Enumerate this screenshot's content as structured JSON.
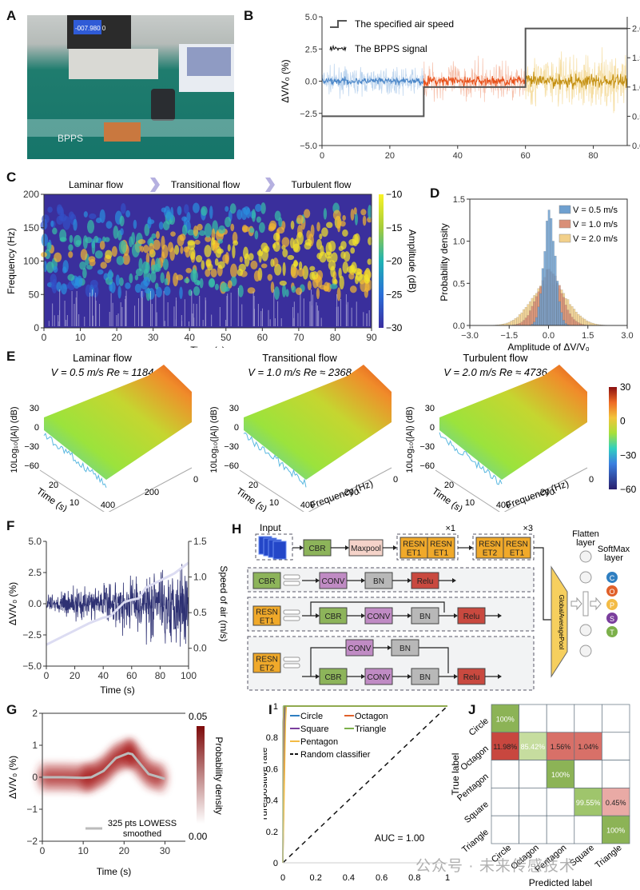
{
  "panels": {
    "A": {
      "letter": "A",
      "photo_label": "BPPS",
      "meter_readout": "-007.980 0",
      "description": "Photo of experimental setup: BPPS sensor on a transparent tube, power supply, handheld anemometer, laptop"
    },
    "H": {
      "letter": "H",
      "input_label": "Input",
      "repeat_1": "×1",
      "repeat_3": "×3",
      "main_blocks": [
        "CBR",
        "Maxpool"
      ],
      "group1": [
        [
          "RESN",
          "ET1"
        ],
        [
          "RESN",
          "ET1"
        ]
      ],
      "group2": [
        [
          "RESN",
          "ET2"
        ],
        [
          "RESN",
          "ET1"
        ]
      ],
      "cbr_row": [
        "CBR",
        "CONV",
        "BN",
        "Relu"
      ],
      "resnet1_row": {
        "name": [
          "RESN",
          "ET1"
        ],
        "blocks": [
          "CBR",
          "CONV",
          "BN",
          "Relu"
        ]
      },
      "resnet2_row": {
        "name": [
          "RESN",
          "ET2"
        ],
        "top_blocks": [
          "CONV",
          "BN"
        ],
        "blocks": [
          "CBR",
          "CONV",
          "BN",
          "Relu"
        ]
      },
      "gap_label": "GlobalAveragePool",
      "flatten_label": [
        "Flatten",
        "layer"
      ],
      "softmax_label": [
        "SoftMax",
        "layer"
      ],
      "softmax_nodes": [
        {
          "letter": "C",
          "color": "#2f7fc1"
        },
        {
          "letter": "O",
          "color": "#e0602a"
        },
        {
          "letter": "P",
          "color": "#f3bb45"
        },
        {
          "letter": "S",
          "color": "#7a3e9d"
        },
        {
          "letter": "T",
          "color": "#7cb04a"
        }
      ]
    }
  },
  "watermark": "公众号 · 未来传感技术",
  "chart_data": [
    {
      "id": "B",
      "letter": "B",
      "type": "line",
      "xlabel": "Time (s)",
      "ylabel": "ΔV/V₀ (%)",
      "y2label": "Speed of air (m/s)",
      "xlim": [
        0,
        90
      ],
      "ylim": [
        -5,
        5
      ],
      "y2lim": [
        0,
        2.2
      ],
      "xticks": [
        "0",
        "20",
        "40",
        "60",
        "80"
      ],
      "yticks": [
        "−5.0",
        "−2.5",
        "0.0",
        "2.5",
        "5.0"
      ],
      "y2ticks": [
        "0.0",
        "0.5",
        "1.0",
        "1.5",
        "2.0"
      ],
      "legend": [
        "The specified air speed",
        "The BPPS signal"
      ],
      "step_speed": {
        "x": [
          0,
          30,
          30,
          60,
          60,
          90
        ],
        "y": [
          0.5,
          0.5,
          1.0,
          1.0,
          2.0,
          2.0
        ]
      },
      "signal_segments": [
        {
          "x_range": [
            0,
            30
          ],
          "color": "#4a86c8",
          "light": "#a9c8ea",
          "amplitude_pct": 0.6
        },
        {
          "x_range": [
            30,
            60
          ],
          "color": "#e8521c",
          "light": "#f4b096",
          "amplitude_pct": 0.9
        },
        {
          "x_range": [
            60,
            90
          ],
          "color": "#c49012",
          "light": "#f2d58a",
          "amplitude_pct": 1.3
        }
      ]
    },
    {
      "id": "C",
      "letter": "C",
      "type": "heatmap",
      "xlabel": "Time (s)",
      "ylabel": "Frequency (Hz)",
      "colorbar_label": "Amplitude (dB)",
      "xlim": [
        0,
        90
      ],
      "ylim": [
        0,
        200
      ],
      "clim": [
        -30,
        -10
      ],
      "xticks": [
        "0",
        "10",
        "20",
        "30",
        "40",
        "50",
        "60",
        "70",
        "80",
        "90"
      ],
      "yticks": [
        "0",
        "50",
        "100",
        "150",
        "200"
      ],
      "cticks": [
        "−10",
        "−15",
        "−20",
        "−25",
        "−30"
      ],
      "stages": [
        "Laminar flow",
        "Transitional flow",
        "Turbulent flow"
      ]
    },
    {
      "id": "D",
      "letter": "D",
      "type": "bar",
      "xlabel": "Amplitude of ΔV/V₀",
      "ylabel": "Probability density",
      "xlim": [
        -3,
        3
      ],
      "ylim": [
        0,
        1.5
      ],
      "xticks": [
        "−3.0",
        "−1.5",
        "0.0",
        "1.5",
        "3.0"
      ],
      "yticks": [
        "0.0",
        "0.5",
        "1.0",
        "1.5"
      ],
      "series": [
        {
          "name": "V = 0.5 m/s",
          "color": "#6fa0cf",
          "peak": 1.33,
          "sigma": 0.22
        },
        {
          "name": "V = 1.0 m/s",
          "color": "#d98f77",
          "peak": 0.66,
          "sigma": 0.45
        },
        {
          "name": "V = 2.0 m/s",
          "color": "#f2d08a",
          "peak": 0.52,
          "sigma": 0.68
        }
      ]
    },
    {
      "id": "E",
      "letter": "E",
      "type": "surface",
      "zlabel": "10Log₁₀(|A|)  (dB)",
      "xlabel": "Frequency (Hz)",
      "ylabel": "Time (s)",
      "zticks": [
        "30",
        "0",
        "−30",
        "−60"
      ],
      "freq_ticks": [
        "0",
        "200",
        "400"
      ],
      "time_ticks": [
        "20",
        "10",
        "0"
      ],
      "colorbar_ticks": [
        "30",
        "0",
        "−30",
        "−60"
      ],
      "clim": [
        -60,
        30
      ],
      "subplots": [
        {
          "title": "Laminar flow",
          "subtitle": "V = 0.5 m/s Re ≈ 1184"
        },
        {
          "title": "Transitional flow",
          "subtitle": "V = 1.0 m/s Re ≈ 2368"
        },
        {
          "title": "Turbulent flow",
          "subtitle": "V = 2.0 m/s Re ≈ 4736"
        }
      ]
    },
    {
      "id": "F",
      "letter": "F",
      "type": "line",
      "xlabel": "Time (s)",
      "ylabel": "ΔV/V₀ (%)",
      "y2label": "Speed of air (m/s)",
      "xlim": [
        0,
        100
      ],
      "ylim": [
        -5,
        5
      ],
      "y2lim": [
        -0.25,
        1.5
      ],
      "xticks": [
        "0",
        "20",
        "40",
        "60",
        "80",
        "100"
      ],
      "yticks": [
        "−5.0",
        "−2.5",
        "0.0",
        "2.5",
        "5.0"
      ],
      "y2ticks": [
        "0.0",
        "0.5",
        "1.0",
        "1.5"
      ],
      "speed_curve": {
        "x": [
          0,
          10,
          20,
          30,
          40,
          45,
          50,
          55,
          60,
          65,
          70,
          80,
          90,
          100
        ],
        "y": [
          0.05,
          0.15,
          0.25,
          0.35,
          0.43,
          0.45,
          0.55,
          0.65,
          0.68,
          0.7,
          0.85,
          0.95,
          1.05,
          1.2
        ]
      },
      "signal_color": "#2e3173"
    },
    {
      "id": "G",
      "letter": "G",
      "type": "heatmap",
      "xlabel": "Time (s)",
      "ylabel": "ΔV/V₀ (%)",
      "colorbar_label": "Probability density",
      "xlim": [
        0,
        35
      ],
      "ylim": [
        -2,
        2
      ],
      "clim": [
        0,
        0.05
      ],
      "xticks": [
        "0",
        "10",
        "20",
        "30"
      ],
      "yticks": [
        "−2",
        "−1",
        "0",
        "1",
        "2"
      ],
      "cticks": [
        "0.05",
        "0.00"
      ],
      "legend": [
        "325 pts LOWESS",
        "smoothed"
      ],
      "lowess": {
        "x": [
          0,
          5,
          10,
          12,
          15,
          18,
          21,
          22,
          26,
          30
        ],
        "y": [
          0,
          0,
          -0.02,
          0,
          0.2,
          0.6,
          0.75,
          0.72,
          0.1,
          -0.05
        ]
      }
    },
    {
      "id": "I",
      "letter": "I",
      "type": "line",
      "xlabel": "False-positive rate",
      "ylabel": "Ture-positive rate",
      "xlim": [
        0,
        1
      ],
      "ylim": [
        0,
        1
      ],
      "xticks": [
        "0",
        "0.2",
        "0.4",
        "0.6",
        "0.8",
        "1"
      ],
      "yticks": [
        "0",
        "0.2",
        "0.4",
        "0.6",
        "0.8",
        "1"
      ],
      "annotation": "AUC = 1.00",
      "series": [
        {
          "name": "Circle",
          "color": "#2f7fc1"
        },
        {
          "name": "Octagon",
          "color": "#e0602a"
        },
        {
          "name": "Square",
          "color": "#7a3e9d"
        },
        {
          "name": "Triangle",
          "color": "#7cb04a"
        },
        {
          "name": "Pentagon",
          "color": "#f3bb45"
        },
        {
          "name": "Random classifier",
          "color": "#111111",
          "dashed": true
        }
      ]
    },
    {
      "id": "J",
      "letter": "J",
      "type": "table",
      "xlabel": "Predicted label",
      "ylabel": "True label",
      "labels": [
        "Circle",
        "Octagon",
        "Pentagon",
        "Square",
        "Triangle"
      ],
      "matrix": [
        [
          "100%",
          "",
          "",
          "",
          ""
        ],
        [
          "11.98%",
          "85.42%",
          "1.56%",
          "1.04%",
          ""
        ],
        [
          "",
          "",
          "100%",
          "",
          ""
        ],
        [
          "",
          "",
          "",
          "99.55%",
          "0.45%"
        ],
        [
          "",
          "",
          "",
          "",
          "100%"
        ]
      ],
      "values": [
        [
          100,
          0,
          0,
          0,
          0
        ],
        [
          11.98,
          85.42,
          1.56,
          1.04,
          0
        ],
        [
          0,
          0,
          100,
          0,
          0
        ],
        [
          0,
          0,
          0,
          99.55,
          0.45
        ],
        [
          0,
          0,
          0,
          0,
          100
        ]
      ]
    }
  ]
}
